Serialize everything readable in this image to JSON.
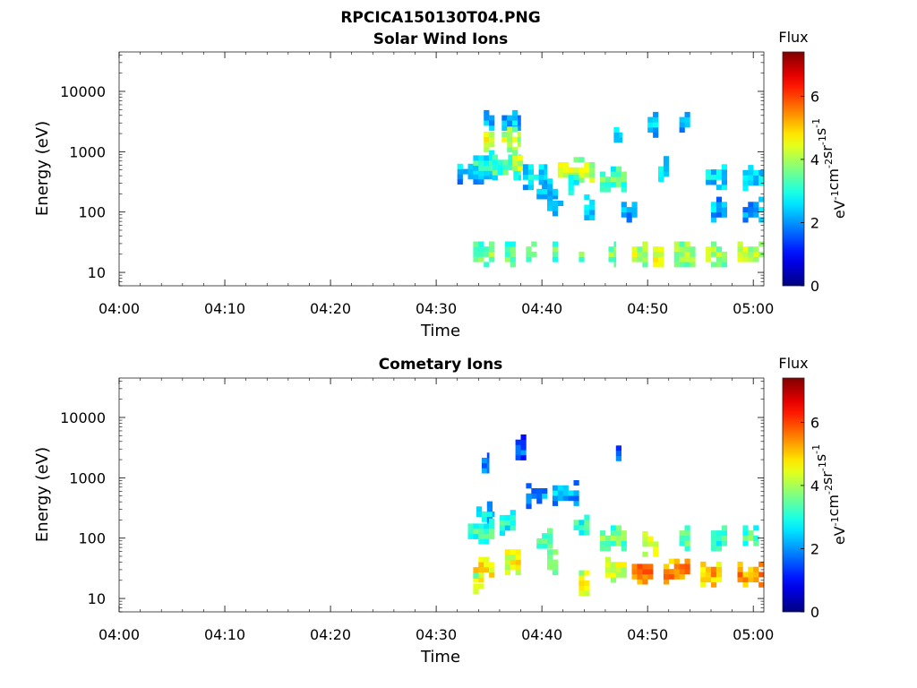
{
  "figure_title": "RPCICA150130T04.PNG",
  "chart_data": [
    {
      "type": "heatmap",
      "title": "Solar Wind Ions",
      "xlabel": "Time",
      "ylabel": "Energy (eV)",
      "x_ticks": [
        "04:00",
        "04:10",
        "04:20",
        "04:30",
        "04:40",
        "04:50",
        "05:00"
      ],
      "x_range_minutes": [
        0,
        61
      ],
      "y_scale": "log",
      "y_ticks": [
        "10",
        "100",
        "1000",
        "10000"
      ],
      "y_range": [
        6,
        45000
      ],
      "colorbar": {
        "title": "Flux",
        "unit": "eV-1cm-2sr-1s-1",
        "ticks": [
          "0",
          "2",
          "4",
          "6"
        ],
        "range": [
          0,
          7.4
        ],
        "colormap": "jet"
      },
      "bands": [
        {
          "t0": 32.0,
          "t1": 35.5,
          "e": 470,
          "v": 2.4
        },
        {
          "t0": 33.5,
          "t1": 35.5,
          "e": 650,
          "v": 3.0
        },
        {
          "t0": 34.5,
          "t1": 35.5,
          "e": 3000,
          "v": 2.3
        },
        {
          "t0": 34.5,
          "t1": 35.5,
          "e": 1600,
          "v": 4.5
        },
        {
          "t0": 35.3,
          "t1": 38.0,
          "e": 550,
          "v": 3.3
        },
        {
          "t0": 36.2,
          "t1": 38.0,
          "e": 3000,
          "v": 2.3
        },
        {
          "t0": 36.2,
          "t1": 38.0,
          "e": 1600,
          "v": 4.2
        },
        {
          "t0": 37.2,
          "t1": 38.2,
          "e": 650,
          "v": 4.3
        },
        {
          "t0": 38.2,
          "t1": 40.5,
          "e": 380,
          "v": 2.6
        },
        {
          "t0": 39.5,
          "t1": 41.5,
          "e": 220,
          "v": 2.4
        },
        {
          "t0": 40.5,
          "t1": 42.0,
          "e": 140,
          "v": 2.6
        },
        {
          "t0": 41.5,
          "t1": 45.0,
          "e": 500,
          "v": 4.3
        },
        {
          "t0": 42.5,
          "t1": 43.5,
          "e": 310,
          "v": 2.8
        },
        {
          "t0": 44.0,
          "t1": 45.0,
          "e": 120,
          "v": 2.4
        },
        {
          "t0": 45.5,
          "t1": 48.0,
          "e": 350,
          "v": 3.4
        },
        {
          "t0": 46.8,
          "t1": 47.6,
          "e": 1900,
          "v": 2.7
        },
        {
          "t0": 47.5,
          "t1": 49.0,
          "e": 110,
          "v": 2.3
        },
        {
          "t0": 50.0,
          "t1": 51.0,
          "e": 2800,
          "v": 2.3
        },
        {
          "t0": 51.0,
          "t1": 52.0,
          "e": 520,
          "v": 2.8
        },
        {
          "t0": 53.0,
          "t1": 54.0,
          "e": 2800,
          "v": 2.2
        },
        {
          "t0": 55.5,
          "t1": 57.5,
          "e": 380,
          "v": 2.6
        },
        {
          "t0": 56.0,
          "t1": 57.5,
          "e": 110,
          "v": 2.3
        },
        {
          "t0": 59.0,
          "t1": 61.0,
          "e": 370,
          "v": 2.6
        },
        {
          "t0": 59.0,
          "t1": 61.0,
          "e": 110,
          "v": 2.2
        },
        {
          "t0": 33.5,
          "t1": 35.5,
          "e": 20,
          "v": 3.7
        },
        {
          "t0": 36.5,
          "t1": 37.5,
          "e": 20,
          "v": 3.6
        },
        {
          "t0": 38.5,
          "t1": 39.5,
          "e": 20,
          "v": 3.8
        },
        {
          "t0": 41.0,
          "t1": 41.5,
          "e": 20,
          "v": 3.5
        },
        {
          "t0": 43.5,
          "t1": 44.0,
          "e": 20,
          "v": 3.4
        },
        {
          "t0": 46.3,
          "t1": 47.0,
          "e": 20,
          "v": 3.8
        },
        {
          "t0": 48.5,
          "t1": 50.0,
          "e": 20,
          "v": 4.2
        },
        {
          "t0": 50.5,
          "t1": 51.5,
          "e": 20,
          "v": 4.6
        },
        {
          "t0": 52.5,
          "t1": 54.5,
          "e": 20,
          "v": 4.0
        },
        {
          "t0": 55.5,
          "t1": 57.5,
          "e": 20,
          "v": 4.1
        },
        {
          "t0": 58.5,
          "t1": 61.0,
          "e": 20,
          "v": 4.2
        }
      ]
    },
    {
      "type": "heatmap",
      "title": "Cometary Ions",
      "xlabel": "Time",
      "ylabel": "Energy (eV)",
      "x_ticks": [
        "04:00",
        "04:10",
        "04:20",
        "04:30",
        "04:40",
        "04:50",
        "05:00"
      ],
      "x_range_minutes": [
        0,
        61
      ],
      "y_scale": "log",
      "y_ticks": [
        "10",
        "100",
        "1000",
        "10000"
      ],
      "y_range": [
        6,
        45000
      ],
      "colorbar": {
        "title": "Flux",
        "unit": "eV-1cm-2sr-1s-1",
        "ticks": [
          "0",
          "2",
          "4",
          "6"
        ],
        "range": [
          0,
          7.4
        ],
        "colormap": "jet"
      },
      "bands": [
        {
          "t0": 33.8,
          "t1": 35.5,
          "e": 250,
          "v": 2.6
        },
        {
          "t0": 33.0,
          "t1": 35.5,
          "e": 130,
          "v": 3.3
        },
        {
          "t0": 33.5,
          "t1": 35.5,
          "e": 30,
          "v": 4.8
        },
        {
          "t0": 33.5,
          "t1": 34.5,
          "e": 16,
          "v": 4.0
        },
        {
          "t0": 34.3,
          "t1": 35.0,
          "e": 1600,
          "v": 2.0
        },
        {
          "t0": 36.0,
          "t1": 37.5,
          "e": 180,
          "v": 3.0
        },
        {
          "t0": 36.5,
          "t1": 38.0,
          "e": 40,
          "v": 4.6
        },
        {
          "t0": 37.5,
          "t1": 38.5,
          "e": 3200,
          "v": 1.8
        },
        {
          "t0": 38.5,
          "t1": 40.5,
          "e": 500,
          "v": 2.2
        },
        {
          "t0": 39.5,
          "t1": 41.0,
          "e": 90,
          "v": 3.4
        },
        {
          "t0": 40.5,
          "t1": 41.5,
          "e": 40,
          "v": 4.0
        },
        {
          "t0": 41.0,
          "t1": 43.5,
          "e": 560,
          "v": 2.2
        },
        {
          "t0": 43.0,
          "t1": 44.5,
          "e": 150,
          "v": 3.2
        },
        {
          "t0": 43.5,
          "t1": 44.5,
          "e": 18,
          "v": 4.4
        },
        {
          "t0": 45.5,
          "t1": 48.0,
          "e": 100,
          "v": 3.6
        },
        {
          "t0": 46.0,
          "t1": 48.0,
          "e": 30,
          "v": 4.4
        },
        {
          "t0": 47.0,
          "t1": 47.5,
          "e": 2100,
          "v": 1.6
        },
        {
          "t0": 48.5,
          "t1": 50.5,
          "e": 28,
          "v": 5.6
        },
        {
          "t0": 49.5,
          "t1": 51.0,
          "e": 80,
          "v": 4.4
        },
        {
          "t0": 51.5,
          "t1": 54.0,
          "e": 28,
          "v": 5.6
        },
        {
          "t0": 53.0,
          "t1": 54.0,
          "e": 100,
          "v": 3.4
        },
        {
          "t0": 55.0,
          "t1": 57.0,
          "e": 25,
          "v": 5.2
        },
        {
          "t0": 56.0,
          "t1": 57.5,
          "e": 100,
          "v": 3.3
        },
        {
          "t0": 58.5,
          "t1": 61.0,
          "e": 25,
          "v": 5.4
        },
        {
          "t0": 59.0,
          "t1": 60.5,
          "e": 100,
          "v": 3.4
        }
      ]
    }
  ]
}
